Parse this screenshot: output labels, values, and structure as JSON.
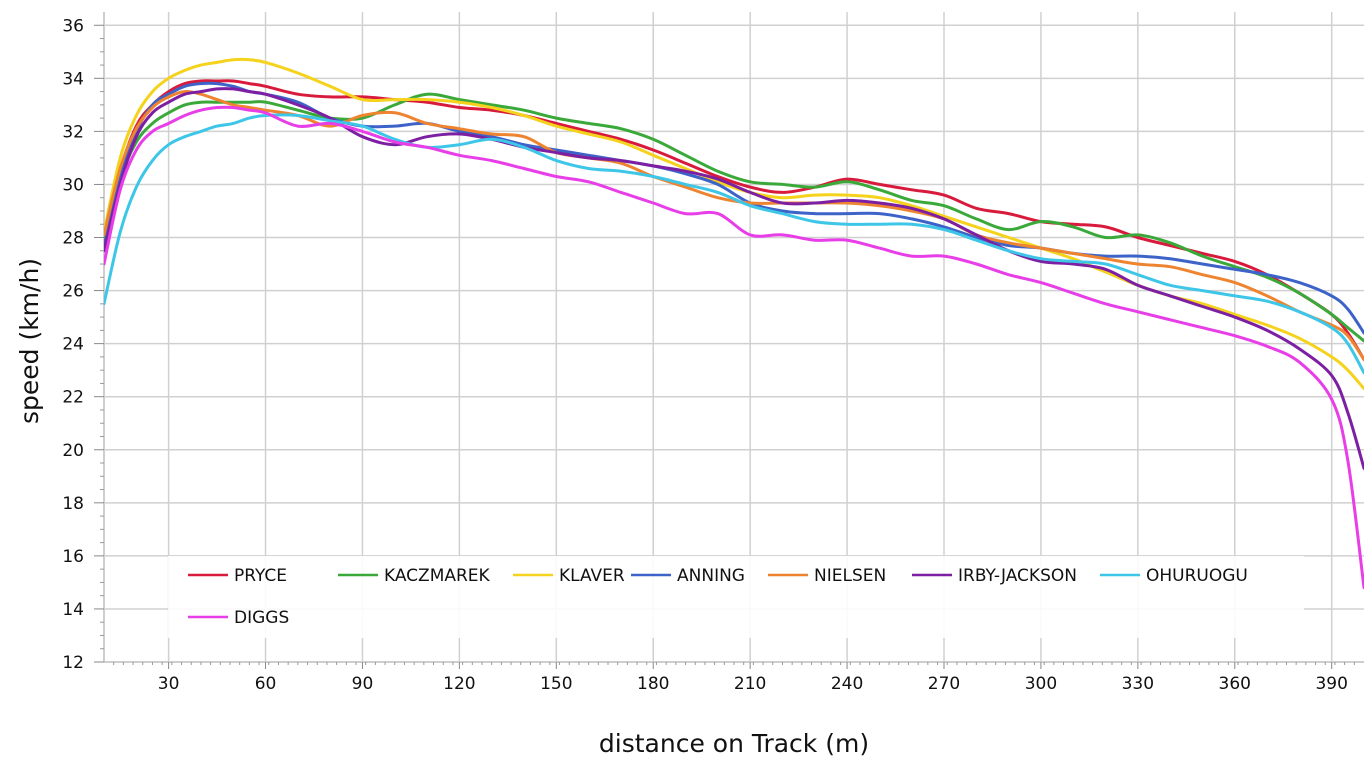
{
  "chart_data": {
    "type": "line",
    "xlabel": "distance on Track (m)",
    "ylabel": "speed (km/h)",
    "xlim": [
      10,
      400
    ],
    "ylim": [
      12,
      36.5
    ],
    "xticks": [
      30,
      60,
      90,
      120,
      150,
      180,
      210,
      240,
      270,
      300,
      330,
      360,
      390
    ],
    "yticks": [
      12,
      14,
      16,
      18,
      20,
      22,
      24,
      26,
      28,
      30,
      32,
      34,
      36
    ],
    "grid": true,
    "legend_position": "bottom",
    "x": [
      10,
      15,
      20,
      25,
      30,
      35,
      40,
      45,
      50,
      55,
      60,
      70,
      80,
      90,
      100,
      110,
      120,
      130,
      140,
      150,
      160,
      170,
      180,
      190,
      200,
      210,
      220,
      230,
      240,
      250,
      260,
      270,
      280,
      290,
      300,
      310,
      320,
      330,
      340,
      350,
      360,
      370,
      380,
      390,
      395,
      400
    ],
    "series": [
      {
        "name": "PRYCE",
        "color": "#d81b3c",
        "values": [
          27.8,
          30.5,
          32.2,
          33.0,
          33.5,
          33.8,
          33.9,
          33.9,
          33.9,
          33.8,
          33.7,
          33.4,
          33.3,
          33.3,
          33.2,
          33.1,
          32.9,
          32.8,
          32.6,
          32.3,
          32.0,
          31.7,
          31.3,
          30.8,
          30.3,
          29.9,
          29.7,
          29.9,
          30.2,
          30.0,
          29.8,
          29.6,
          29.1,
          28.9,
          28.6,
          28.5,
          28.4,
          28.0,
          27.7,
          27.4,
          27.1,
          26.6,
          25.9,
          25.1,
          24.4,
          23.4
        ]
      },
      {
        "name": "KACZMAREK",
        "color": "#3aa93a",
        "values": [
          28.0,
          30.2,
          31.6,
          32.3,
          32.7,
          33.0,
          33.1,
          33.1,
          33.1,
          33.1,
          33.1,
          32.8,
          32.5,
          32.5,
          33.0,
          33.4,
          33.2,
          33.0,
          32.8,
          32.5,
          32.3,
          32.1,
          31.7,
          31.1,
          30.5,
          30.1,
          30.0,
          29.9,
          30.1,
          29.8,
          29.4,
          29.2,
          28.7,
          28.3,
          28.6,
          28.4,
          28.0,
          28.1,
          27.8,
          27.3,
          26.9,
          26.5,
          25.9,
          25.1,
          24.6,
          24.1
        ]
      },
      {
        "name": "KLAVER",
        "color": "#f5d21b",
        "values": [
          28.2,
          31.0,
          32.6,
          33.5,
          34.0,
          34.3,
          34.5,
          34.6,
          34.7,
          34.7,
          34.6,
          34.2,
          33.7,
          33.2,
          33.2,
          33.2,
          33.1,
          32.9,
          32.6,
          32.2,
          31.9,
          31.6,
          31.1,
          30.6,
          30.1,
          29.7,
          29.5,
          29.6,
          29.6,
          29.5,
          29.2,
          28.8,
          28.4,
          28.0,
          27.6,
          27.2,
          26.7,
          26.2,
          25.8,
          25.5,
          25.1,
          24.7,
          24.2,
          23.5,
          23.0,
          22.3
        ]
      },
      {
        "name": "ANNING",
        "color": "#3d63c9",
        "values": [
          27.6,
          30.3,
          32.0,
          33.0,
          33.4,
          33.7,
          33.8,
          33.8,
          33.7,
          33.5,
          33.4,
          33.1,
          32.5,
          32.2,
          32.2,
          32.3,
          32.0,
          31.8,
          31.5,
          31.3,
          31.1,
          30.9,
          30.7,
          30.4,
          30.0,
          29.3,
          29.0,
          28.9,
          28.9,
          28.9,
          28.7,
          28.4,
          28.0,
          27.7,
          27.6,
          27.4,
          27.3,
          27.3,
          27.2,
          27.0,
          26.8,
          26.6,
          26.3,
          25.8,
          25.3,
          24.4
        ]
      },
      {
        "name": "NIELSEN",
        "color": "#ee8430",
        "values": [
          28.1,
          30.6,
          32.1,
          32.9,
          33.3,
          33.5,
          33.4,
          33.2,
          33.0,
          32.9,
          32.8,
          32.6,
          32.2,
          32.6,
          32.7,
          32.3,
          32.1,
          31.9,
          31.8,
          31.2,
          31.0,
          30.8,
          30.3,
          29.9,
          29.5,
          29.3,
          29.3,
          29.3,
          29.3,
          29.2,
          29.0,
          28.7,
          28.1,
          27.8,
          27.6,
          27.4,
          27.2,
          27.0,
          26.9,
          26.6,
          26.3,
          25.8,
          25.2,
          24.7,
          24.3,
          23.4
        ]
      },
      {
        "name": "IRBY-JACKSON",
        "color": "#7c1fa3",
        "values": [
          27.5,
          30.0,
          31.8,
          32.7,
          33.1,
          33.4,
          33.5,
          33.6,
          33.6,
          33.5,
          33.4,
          33.0,
          32.5,
          31.8,
          31.5,
          31.8,
          31.9,
          31.7,
          31.4,
          31.2,
          31.0,
          30.9,
          30.7,
          30.5,
          30.2,
          29.7,
          29.3,
          29.3,
          29.4,
          29.3,
          29.1,
          28.7,
          28.1,
          27.5,
          27.1,
          27.0,
          26.8,
          26.2,
          25.8,
          25.4,
          25.0,
          24.5,
          23.8,
          22.8,
          21.4,
          19.3
        ]
      },
      {
        "name": "OHURUOGU",
        "color": "#3ec6e8",
        "values": [
          25.5,
          28.2,
          29.9,
          30.9,
          31.5,
          31.8,
          32.0,
          32.2,
          32.3,
          32.5,
          32.6,
          32.6,
          32.4,
          32.2,
          31.7,
          31.4,
          31.5,
          31.7,
          31.4,
          30.9,
          30.6,
          30.5,
          30.3,
          30.0,
          29.7,
          29.2,
          28.9,
          28.6,
          28.5,
          28.5,
          28.5,
          28.3,
          27.9,
          27.5,
          27.2,
          27.1,
          27.0,
          26.6,
          26.2,
          26.0,
          25.8,
          25.6,
          25.2,
          24.6,
          24.0,
          22.9
        ]
      },
      {
        "name": "DIGGS",
        "color": "#e83ee8",
        "values": [
          27.0,
          29.8,
          31.3,
          32.0,
          32.3,
          32.6,
          32.8,
          32.9,
          32.9,
          32.8,
          32.7,
          32.2,
          32.3,
          32.0,
          31.6,
          31.4,
          31.1,
          30.9,
          30.6,
          30.3,
          30.1,
          29.7,
          29.3,
          28.9,
          28.9,
          28.1,
          28.1,
          27.9,
          27.9,
          27.6,
          27.3,
          27.3,
          27.0,
          26.6,
          26.3,
          25.9,
          25.5,
          25.2,
          24.9,
          24.6,
          24.3,
          23.9,
          23.3,
          21.9,
          19.6,
          14.8
        ]
      }
    ]
  }
}
